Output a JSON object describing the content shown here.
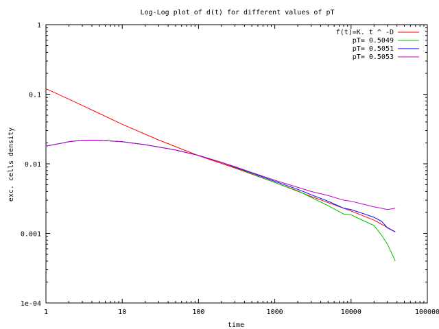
{
  "chart_data": {
    "type": "line",
    "title": "Log-Log plot of d(t) for different values of pT",
    "xlabel": "time",
    "ylabel": "exc. cells density",
    "xscale": "log",
    "yscale": "log",
    "xlim": [
      1,
      100000
    ],
    "ylim": [
      0.0001,
      1
    ],
    "x_ticks": [
      1,
      10,
      100,
      1000,
      10000,
      100000
    ],
    "x_tick_labels": [
      "1",
      "10",
      "100",
      "1000",
      "10000",
      "100000"
    ],
    "y_ticks": [
      0.0001,
      0.001,
      0.01,
      0.1,
      1
    ],
    "y_tick_labels": [
      "1e-04",
      "0.001",
      "0.01",
      "0.1",
      "1"
    ],
    "grid": false,
    "legend_position": "top-right",
    "series": [
      {
        "name": "f(t)=K. t ^ -D",
        "color": "#ff0000",
        "points": [
          [
            1,
            0.12
          ],
          [
            2,
            0.085
          ],
          [
            5,
            0.053
          ],
          [
            10,
            0.037
          ],
          [
            30,
            0.022
          ],
          [
            100,
            0.0131
          ],
          [
            300,
            0.0087
          ],
          [
            1000,
            0.0054
          ],
          [
            3000,
            0.0034
          ],
          [
            10000,
            0.0021
          ],
          [
            20000,
            0.00155
          ],
          [
            38000,
            0.00105
          ]
        ]
      },
      {
        "name": "pT= 0.5049",
        "color": "#00c000",
        "points": [
          [
            1,
            0.018
          ],
          [
            1.5,
            0.0195
          ],
          [
            2,
            0.0208
          ],
          [
            3,
            0.0218
          ],
          [
            5,
            0.0218
          ],
          [
            10,
            0.0208
          ],
          [
            20,
            0.0188
          ],
          [
            50,
            0.0158
          ],
          [
            100,
            0.0132
          ],
          [
            200,
            0.0105
          ],
          [
            300,
            0.0089
          ],
          [
            500,
            0.0072
          ],
          [
            1000,
            0.0054
          ],
          [
            2000,
            0.0041
          ],
          [
            3000,
            0.0033
          ],
          [
            5000,
            0.0025
          ],
          [
            8000,
            0.0019
          ],
          [
            10000,
            0.00185
          ],
          [
            15000,
            0.0015
          ],
          [
            20000,
            0.0013
          ],
          [
            25000,
            0.00095
          ],
          [
            30000,
            0.0007
          ],
          [
            38000,
            0.0004
          ]
        ]
      },
      {
        "name": "pT= 0.5051",
        "color": "#0000ff",
        "points": [
          [
            1,
            0.018
          ],
          [
            1.5,
            0.0195
          ],
          [
            2,
            0.0208
          ],
          [
            3,
            0.0218
          ],
          [
            5,
            0.0218
          ],
          [
            10,
            0.0208
          ],
          [
            20,
            0.0188
          ],
          [
            50,
            0.0158
          ],
          [
            100,
            0.0132
          ],
          [
            200,
            0.0105
          ],
          [
            300,
            0.009
          ],
          [
            500,
            0.0074
          ],
          [
            1000,
            0.0056
          ],
          [
            2000,
            0.0043
          ],
          [
            3000,
            0.0036
          ],
          [
            5000,
            0.0029
          ],
          [
            8000,
            0.0023
          ],
          [
            10000,
            0.0022
          ],
          [
            15000,
            0.0019
          ],
          [
            20000,
            0.0017
          ],
          [
            25000,
            0.0015
          ],
          [
            30000,
            0.0012
          ],
          [
            38000,
            0.00105
          ]
        ]
      },
      {
        "name": "pT= 0.5053",
        "color": "#c000c0",
        "points": [
          [
            1,
            0.018
          ],
          [
            1.5,
            0.0195
          ],
          [
            2,
            0.0208
          ],
          [
            3,
            0.0218
          ],
          [
            5,
            0.0218
          ],
          [
            10,
            0.0208
          ],
          [
            20,
            0.0188
          ],
          [
            50,
            0.0158
          ],
          [
            100,
            0.0132
          ],
          [
            200,
            0.0105
          ],
          [
            300,
            0.0091
          ],
          [
            500,
            0.0075
          ],
          [
            1000,
            0.0058
          ],
          [
            2000,
            0.0046
          ],
          [
            3000,
            0.004
          ],
          [
            5000,
            0.0035
          ],
          [
            8000,
            0.003
          ],
          [
            10000,
            0.0029
          ],
          [
            15000,
            0.0026
          ],
          [
            20000,
            0.0024
          ],
          [
            25000,
            0.0023
          ],
          [
            30000,
            0.0022
          ],
          [
            38000,
            0.0023
          ]
        ]
      }
    ]
  }
}
